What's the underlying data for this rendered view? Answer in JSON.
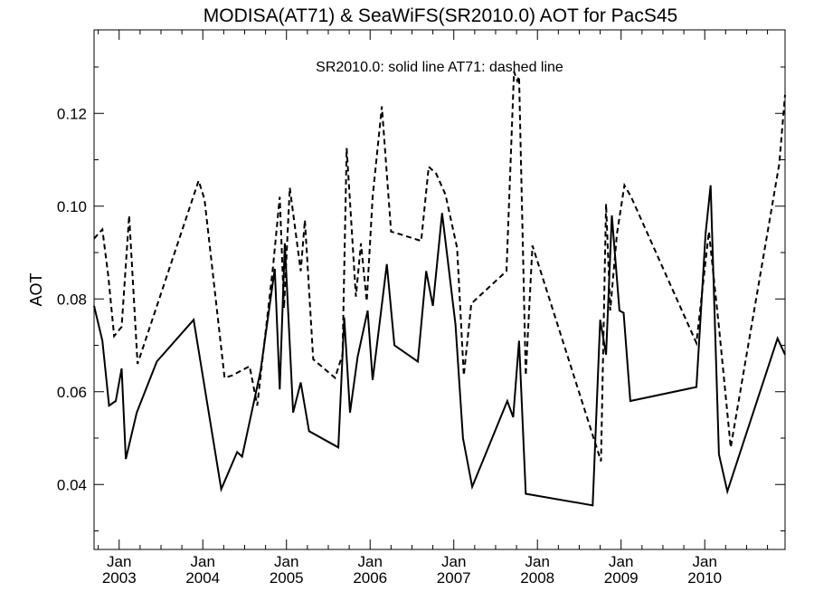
{
  "chart_data": {
    "type": "line",
    "title": "MODISA(AT71) & SeaWiFS(SR2010.0)  AOT for PacS45",
    "legend_text": "SR2010.0: solid line   AT71: dashed line",
    "ylabel": "AOT",
    "xlabel": "",
    "ylim": [
      0.026,
      0.138
    ],
    "xlim": [
      2002.7,
      2010.96
    ],
    "y_ticks": [
      0.04,
      0.06,
      0.08,
      0.1,
      0.12
    ],
    "y_tick_labels": [
      "0.04",
      "0.06",
      "0.08",
      "0.10",
      "0.12"
    ],
    "x_ticks": [
      2003.0,
      2004.0,
      2005.0,
      2006.0,
      2007.0,
      2008.0,
      2009.0,
      2010.0
    ],
    "x_tick_month_labels": [
      "Jan",
      "Jan",
      "Jan",
      "Jan",
      "Jan",
      "Jan",
      "Jan",
      "Jan"
    ],
    "x_tick_year_labels": [
      "2003",
      "2004",
      "2005",
      "2006",
      "2007",
      "2008",
      "2009",
      "2010"
    ],
    "grid": false,
    "series": [
      {
        "name": "SR2010.0",
        "style": "solid",
        "color": "#000000",
        "x": [
          2002.7,
          2002.8,
          2002.88,
          2002.96,
          2003.03,
          2003.08,
          2003.21,
          2003.45,
          2003.89,
          2004.22,
          2004.41,
          2004.47,
          2004.69,
          2004.86,
          2004.92,
          2004.98,
          2005.08,
          2005.17,
          2005.27,
          2005.62,
          2005.69,
          2005.76,
          2005.85,
          2005.97,
          2006.03,
          2006.2,
          2006.29,
          2006.57,
          2006.67,
          2006.75,
          2006.86,
          2007.02,
          2007.11,
          2007.22,
          2007.64,
          2007.71,
          2007.78,
          2007.86,
          2008.66,
          2008.75,
          2008.82,
          2008.89,
          2008.98,
          2009.03,
          2009.11,
          2009.9,
          2010.01,
          2010.07,
          2010.17,
          2010.27,
          2010.87,
          2010.96
        ],
        "y": [
          0.0785,
          0.071,
          0.057,
          0.058,
          0.065,
          0.0455,
          0.0555,
          0.0665,
          0.0755,
          0.039,
          0.047,
          0.046,
          0.0645,
          0.0865,
          0.0605,
          0.092,
          0.0555,
          0.062,
          0.0515,
          0.048,
          0.076,
          0.0555,
          0.0675,
          0.0775,
          0.0625,
          0.0875,
          0.07,
          0.0665,
          0.086,
          0.0785,
          0.0985,
          0.0745,
          0.05,
          0.0395,
          0.058,
          0.0545,
          0.071,
          0.038,
          0.0355,
          0.0755,
          0.068,
          0.098,
          0.0775,
          0.077,
          0.058,
          0.061,
          0.094,
          0.1045,
          0.0465,
          0.0385,
          0.0715,
          0.068
        ]
      },
      {
        "name": "AT71",
        "style": "dashed",
        "color": "#000000",
        "x": [
          2002.7,
          2002.8,
          2002.87,
          2002.94,
          2003.03,
          2003.12,
          2003.22,
          2003.95,
          2004.02,
          2004.26,
          2004.35,
          2004.56,
          2004.65,
          2004.84,
          2004.92,
          2004.97,
          2005.04,
          2005.17,
          2005.22,
          2005.32,
          2005.58,
          2005.67,
          2005.72,
          2005.83,
          2005.89,
          2005.96,
          2006.03,
          2006.14,
          2006.25,
          2006.35,
          2006.61,
          2006.7,
          2006.79,
          2006.9,
          2007.04,
          2007.12,
          2007.21,
          2007.63,
          2007.72,
          2007.76,
          2007.78,
          2007.86,
          2007.94,
          2008.76,
          2008.82,
          2008.87,
          2008.95,
          2009.04,
          2009.12,
          2009.9,
          2010.05,
          2010.17,
          2010.31,
          2010.89,
          2010.96
        ],
        "y": [
          0.093,
          0.095,
          0.085,
          0.072,
          0.074,
          0.098,
          0.066,
          0.1055,
          0.1015,
          0.063,
          0.0635,
          0.0655,
          0.057,
          0.087,
          0.102,
          0.078,
          0.104,
          0.086,
          0.097,
          0.067,
          0.063,
          0.068,
          0.1125,
          0.0805,
          0.092,
          0.0795,
          0.102,
          0.1215,
          0.0945,
          0.094,
          0.0925,
          0.1085,
          0.107,
          0.1025,
          0.091,
          0.0635,
          0.079,
          0.086,
          0.129,
          0.127,
          0.128,
          0.0635,
          0.0915,
          0.045,
          0.1005,
          0.0775,
          0.094,
          0.1045,
          0.102,
          0.0705,
          0.0945,
          0.074,
          0.048,
          0.109,
          0.124
        ]
      }
    ]
  }
}
